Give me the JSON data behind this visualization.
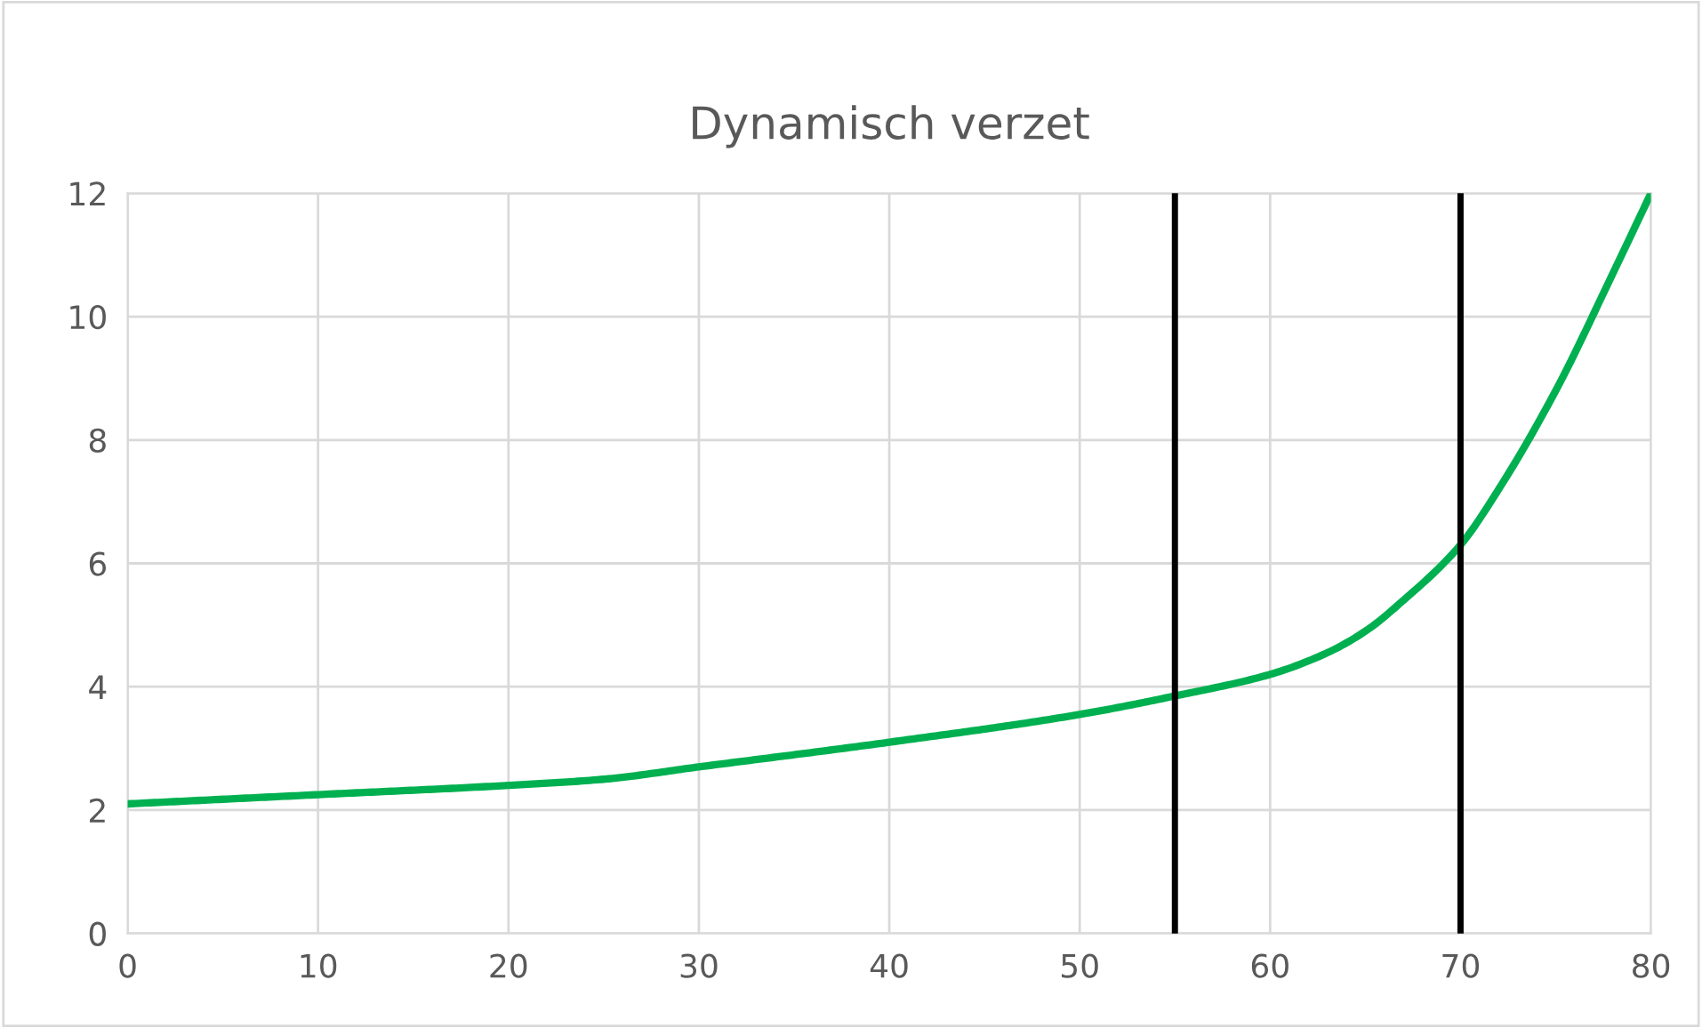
{
  "chart_data": {
    "type": "line",
    "title": "Dynamisch verzet",
    "series": [
      {
        "color": "#00b050",
        "x": [
          0,
          10,
          20,
          25,
          30,
          40,
          50,
          55,
          60,
          63,
          65,
          67,
          70,
          72,
          75,
          78,
          80
        ],
        "values": [
          2.1,
          2.25,
          2.4,
          2.5,
          2.7,
          3.1,
          3.55,
          3.85,
          4.2,
          4.55,
          4.9,
          5.4,
          6.3,
          7.2,
          8.8,
          10.7,
          12
        ]
      }
    ],
    "xlim": [
      0,
      80
    ],
    "xticks": [
      0,
      10,
      20,
      30,
      40,
      50,
      60,
      70,
      80
    ],
    "ylim": [
      0,
      12
    ],
    "yticks": [
      0,
      2,
      4,
      6,
      8,
      10,
      12
    ],
    "grid": true,
    "legend": false,
    "ref_lines": [
      {
        "axis": "x",
        "value": 55,
        "label": null,
        "color": "#000000"
      },
      {
        "axis": "x",
        "value": 70,
        "label": null,
        "color": "#000000"
      }
    ]
  }
}
